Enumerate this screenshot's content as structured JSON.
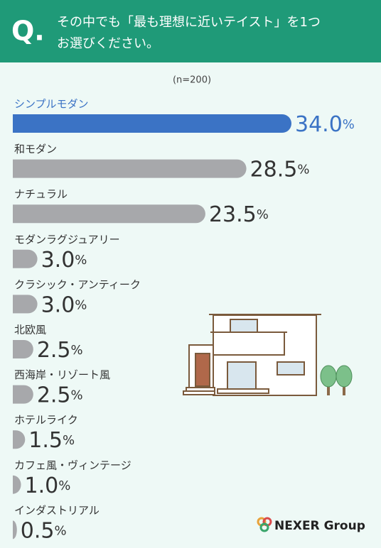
{
  "header": {
    "mark": "Q.",
    "question_lines": [
      "その中でも「最も理想に近いテイスト」を1つ",
      "お選びください。"
    ]
  },
  "chart_data": {
    "type": "bar",
    "orientation": "horizontal",
    "note": "(n=200)",
    "categories": [
      "シンプルモダン",
      "和モダン",
      "ナチュラル",
      "モダンラグジュアリー",
      "クラシック・アンティーク",
      "北欧風",
      "西海岸・リゾート風",
      "ホテルライク",
      "カフェ風・ヴィンテージ",
      "インダストリアル"
    ],
    "values": [
      34.0,
      28.5,
      23.5,
      3.0,
      3.0,
      2.5,
      2.5,
      1.5,
      1.0,
      0.5
    ],
    "value_labels": [
      "34.0%",
      "28.5%",
      "23.5%",
      "3.0%",
      "3.0%",
      "2.5%",
      "2.5%",
      "1.5%",
      "1.0%",
      "0.5%"
    ],
    "colors": [
      "#3b73c5",
      "#a7a8ab",
      "#a7a8ab",
      "#a7a8ab",
      "#a7a8ab",
      "#a7a8ab",
      "#a7a8ab",
      "#a7a8ab",
      "#a7a8ab",
      "#a7a8ab"
    ]
  },
  "logo": "NEXER Group"
}
